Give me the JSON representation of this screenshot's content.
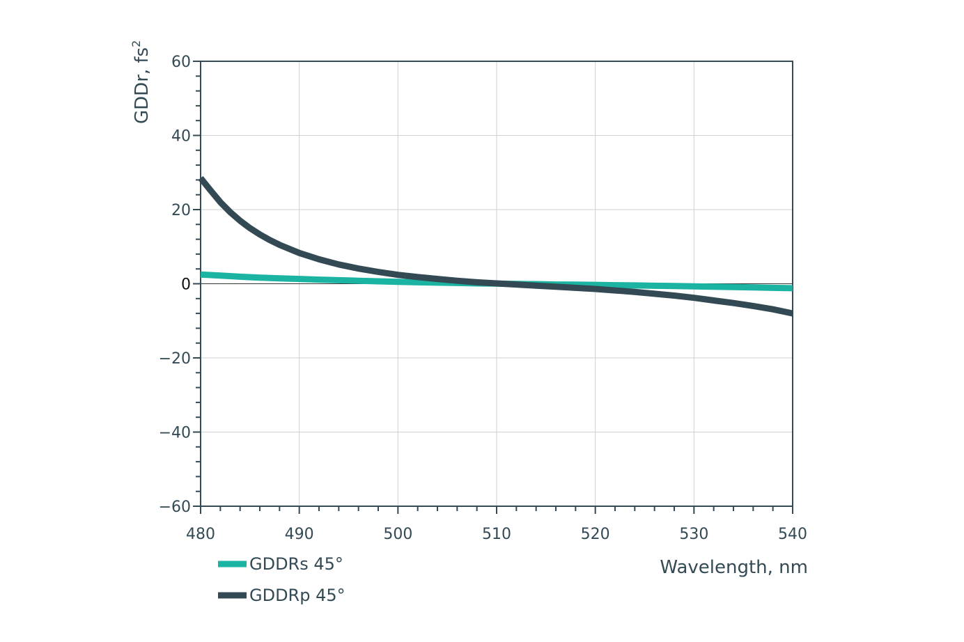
{
  "chart_data": {
    "type": "line",
    "xlabel": "Wavelength, nm",
    "ylabel": "GDDr, fs",
    "ylabel_superscript": "2",
    "xlim": [
      480,
      540
    ],
    "ylim": [
      -60,
      60
    ],
    "x_ticks": [
      480,
      490,
      500,
      510,
      520,
      530,
      540
    ],
    "y_ticks": [
      60,
      40,
      20,
      0,
      -20,
      -40,
      -60
    ],
    "x_tick_labels": [
      "480",
      "490",
      "500",
      "510",
      "520",
      "530",
      "540"
    ],
    "y_tick_labels": [
      "60",
      "40",
      "20",
      "0",
      "−20",
      "−40",
      "−60"
    ],
    "grid": true,
    "legend_position": "bottom-left",
    "series": [
      {
        "name": "GDDRs 45°",
        "color": "#1bb3a1",
        "x": [
          480,
          482,
          484,
          486,
          488,
          490,
          492,
          494,
          496,
          498,
          500,
          502,
          504,
          506,
          508,
          510,
          512,
          514,
          516,
          518,
          520,
          522,
          524,
          526,
          528,
          530,
          532,
          534,
          536,
          538,
          540
        ],
        "values": [
          2.5,
          2.2,
          1.9,
          1.65,
          1.45,
          1.3,
          1.1,
          0.95,
          0.8,
          0.65,
          0.5,
          0.4,
          0.3,
          0.2,
          0.1,
          0.05,
          -0.05,
          -0.1,
          -0.2,
          -0.25,
          -0.3,
          -0.4,
          -0.45,
          -0.55,
          -0.6,
          -0.7,
          -0.8,
          -0.9,
          -1.0,
          -1.1,
          -1.2
        ]
      },
      {
        "name": "GDDRp 45°",
        "color": "#334a54",
        "x": [
          480,
          481,
          482,
          483,
          484,
          485,
          486,
          487,
          488,
          490,
          492,
          494,
          496,
          498,
          500,
          502,
          504,
          506,
          508,
          510,
          512,
          514,
          516,
          518,
          520,
          522,
          524,
          526,
          528,
          530,
          532,
          534,
          536,
          538,
          540
        ],
        "values": [
          28.5,
          25.2,
          22.0,
          19.3,
          17.0,
          15.0,
          13.3,
          11.8,
          10.5,
          8.3,
          6.6,
          5.2,
          4.1,
          3.2,
          2.4,
          1.8,
          1.3,
          0.8,
          0.4,
          0.1,
          -0.2,
          -0.5,
          -0.8,
          -1.1,
          -1.4,
          -1.8,
          -2.2,
          -2.7,
          -3.2,
          -3.8,
          -4.5,
          -5.2,
          -6.0,
          -6.9,
          -8.0
        ]
      }
    ]
  }
}
